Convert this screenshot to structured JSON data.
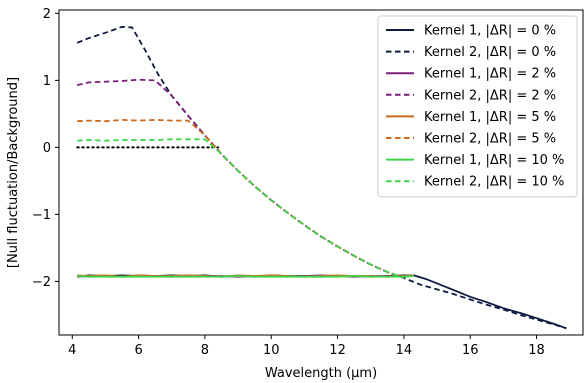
{
  "chart_data": {
    "type": "line",
    "title": "",
    "xlabel": "Wavelength (μm)",
    "ylabel": "[Null fluctuation/Background]",
    "xlim": [
      3.6,
      19.4
    ],
    "ylim": [
      -2.8,
      2.05
    ],
    "xticks": [
      4,
      6,
      8,
      10,
      12,
      14,
      16,
      18
    ],
    "yticks": [
      -2,
      -1,
      0,
      1,
      2
    ],
    "ytick_labels": [
      "−2",
      "−1",
      "0",
      "1",
      "2"
    ],
    "grid": false,
    "legend_position": "top-right",
    "zero_line": {
      "y": 0,
      "x_from": 4.15,
      "x_to": 8.4,
      "color": "#000000",
      "style": "dotted"
    },
    "series": [
      {
        "name": "Kernel 1, |ΔR| = 0 %",
        "color": "#0d1b3e",
        "style": "solid",
        "x": [
          4.15,
          4.5,
          5.0,
          5.5,
          6.0,
          6.5,
          7.0,
          7.5,
          8.0,
          8.5,
          9.0,
          9.5,
          10.0,
          10.5,
          11.0,
          11.5,
          12.0,
          12.5,
          13.0,
          13.5,
          14.0,
          14.3,
          14.7,
          15.0,
          15.5,
          16.0,
          16.5,
          17.0,
          17.5,
          18.0,
          18.5,
          18.9
        ],
        "y": [
          -1.93,
          -1.91,
          -1.92,
          -1.91,
          -1.92,
          -1.92,
          -1.91,
          -1.92,
          -1.91,
          -1.93,
          -1.92,
          -1.93,
          -1.91,
          -1.92,
          -1.92,
          -1.93,
          -1.92,
          -1.92,
          -1.93,
          -1.92,
          -1.91,
          -1.91,
          -1.97,
          -2.03,
          -2.13,
          -2.23,
          -2.31,
          -2.4,
          -2.47,
          -2.55,
          -2.63,
          -2.7
        ]
      },
      {
        "name": "Kernel 2, |ΔR| = 0 %",
        "color": "#0d1b3e",
        "style": "dashed",
        "x": [
          4.15,
          4.5,
          5.0,
          5.5,
          5.8,
          6.2,
          6.6,
          7.0,
          7.5,
          8.0,
          8.5,
          9.0,
          9.5,
          10.0,
          10.5,
          11.0,
          11.5,
          12.0,
          12.5,
          13.0,
          13.5,
          14.0,
          14.5,
          15.0,
          15.5,
          16.0,
          16.5,
          17.0,
          17.5,
          18.0,
          18.5,
          18.9
        ],
        "y": [
          1.56,
          1.63,
          1.71,
          1.8,
          1.79,
          1.45,
          1.08,
          0.77,
          0.47,
          0.18,
          -0.1,
          -0.35,
          -0.58,
          -0.79,
          -0.98,
          -1.16,
          -1.33,
          -1.48,
          -1.62,
          -1.75,
          -1.86,
          -1.95,
          -2.05,
          -2.12,
          -2.19,
          -2.27,
          -2.35,
          -2.42,
          -2.5,
          -2.57,
          -2.64,
          -2.7
        ]
      },
      {
        "name": "Kernel 1, |ΔR| = 2 %",
        "color": "#7b1e7a",
        "style": "solid",
        "x": [
          4.15,
          4.5,
          5.0,
          5.5,
          6.0,
          6.5,
          7.0,
          7.5,
          8.0,
          8.5,
          9.0,
          9.5,
          10.0,
          10.5,
          11.0,
          11.5,
          12.0,
          12.5,
          13.0,
          13.5,
          14.0,
          14.3
        ],
        "y": [
          -1.92,
          -1.93,
          -1.92,
          -1.93,
          -1.91,
          -1.92,
          -1.93,
          -1.92,
          -1.92,
          -1.92,
          -1.93,
          -1.92,
          -1.92,
          -1.93,
          -1.92,
          -1.91,
          -1.92,
          -1.93,
          -1.92,
          -1.92,
          -1.92,
          -1.91
        ]
      },
      {
        "name": "Kernel 2, |ΔR| = 2 %",
        "color": "#7b1e7a",
        "style": "dashed",
        "x": [
          4.15,
          4.5,
          5.0,
          5.5,
          6.0,
          6.5,
          7.0,
          7.5,
          8.0,
          8.5,
          9.0,
          9.5,
          10.0,
          10.5,
          11.0,
          11.5,
          12.0,
          12.5,
          13.0,
          13.5,
          14.0
        ],
        "y": [
          0.93,
          0.97,
          0.98,
          0.99,
          1.01,
          1.0,
          0.77,
          0.47,
          0.18,
          -0.1,
          -0.35,
          -0.58,
          -0.79,
          -0.98,
          -1.16,
          -1.33,
          -1.48,
          -1.62,
          -1.75,
          -1.86,
          -1.95
        ]
      },
      {
        "name": "Kernel 1, |ΔR| = 5 %",
        "color": "#cc6a1f",
        "style": "solid",
        "x": [
          4.15,
          4.5,
          5.0,
          5.5,
          6.0,
          6.5,
          7.0,
          7.5,
          8.0,
          8.5,
          9.0,
          9.5,
          10.0,
          10.5,
          11.0,
          11.5,
          12.0,
          12.5,
          13.0,
          13.5,
          14.0,
          14.3
        ],
        "y": [
          -1.91,
          -1.92,
          -1.91,
          -1.93,
          -1.91,
          -1.92,
          -1.92,
          -1.91,
          -1.92,
          -1.93,
          -1.91,
          -1.92,
          -1.91,
          -1.92,
          -1.93,
          -1.92,
          -1.91,
          -1.92,
          -1.92,
          -1.93,
          -1.92,
          -1.91
        ]
      },
      {
        "name": "Kernel 2, |ΔR| = 5 %",
        "color": "#cc6a1f",
        "style": "dashed",
        "x": [
          4.15,
          4.5,
          5.0,
          5.5,
          6.0,
          6.5,
          7.0,
          7.5,
          8.0,
          8.5,
          9.0,
          9.5,
          10.0,
          10.5,
          11.0,
          11.5,
          12.0,
          12.5,
          13.0,
          13.5,
          14.0
        ],
        "y": [
          0.39,
          0.4,
          0.39,
          0.41,
          0.4,
          0.41,
          0.4,
          0.4,
          0.18,
          -0.1,
          -0.35,
          -0.58,
          -0.79,
          -0.98,
          -1.16,
          -1.33,
          -1.48,
          -1.62,
          -1.75,
          -1.86,
          -1.95
        ]
      },
      {
        "name": "Kernel 1, |ΔR| = 10 %",
        "color": "#3dd64a",
        "style": "solid",
        "x": [
          4.15,
          4.5,
          5.0,
          5.5,
          6.0,
          6.5,
          7.0,
          7.5,
          8.0,
          8.5,
          9.0,
          9.5,
          10.0,
          10.5,
          11.0,
          11.5,
          12.0,
          12.5,
          13.0,
          13.5,
          14.0,
          14.3
        ],
        "y": [
          -1.92,
          -1.93,
          -1.93,
          -1.93,
          -1.93,
          -1.93,
          -1.93,
          -1.93,
          -1.93,
          -1.93,
          -1.92,
          -1.93,
          -1.93,
          -1.93,
          -1.93,
          -1.93,
          -1.93,
          -1.92,
          -1.93,
          -1.93,
          -1.93,
          -1.92
        ]
      },
      {
        "name": "Kernel 2, |ΔR| = 10 %",
        "color": "#3dd64a",
        "style": "dashed",
        "x": [
          4.15,
          4.5,
          5.0,
          5.5,
          6.0,
          6.5,
          7.0,
          7.5,
          8.0,
          8.5,
          9.0,
          9.5,
          10.0,
          10.5,
          11.0,
          11.5,
          12.0,
          12.5,
          13.0,
          13.5,
          14.0
        ],
        "y": [
          0.1,
          0.11,
          0.1,
          0.11,
          0.11,
          0.11,
          0.12,
          0.12,
          0.12,
          -0.1,
          -0.35,
          -0.58,
          -0.79,
          -0.98,
          -1.16,
          -1.33,
          -1.48,
          -1.62,
          -1.75,
          -1.86,
          -1.95
        ]
      }
    ]
  }
}
